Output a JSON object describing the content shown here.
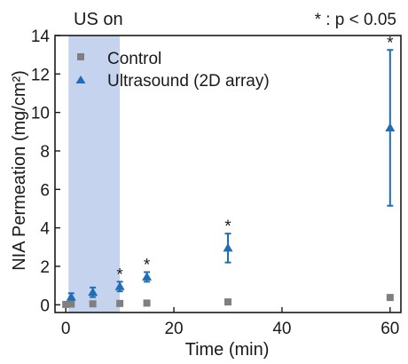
{
  "chart_data": {
    "type": "scatter",
    "annotation_top_left": "US on",
    "significance_note": "* : p < 0.05",
    "xlabel": "Time (min)",
    "ylabel": "NIA Permeation (mg/cm²)",
    "xlim": [
      -2,
      62
    ],
    "ylim": [
      -0.4,
      14
    ],
    "x_ticks": [
      0,
      20,
      40,
      60
    ],
    "y_ticks": [
      0,
      2,
      4,
      6,
      8,
      10,
      12,
      14
    ],
    "legend_position": "top-left",
    "shaded_region": {
      "x_start": 0.5,
      "x_end": 10,
      "color": "#c6d3ee"
    },
    "series": [
      {
        "name": "Control",
        "marker": "square",
        "color": "#7f7f7f",
        "x": [
          0,
          1,
          5,
          10,
          15,
          30,
          60
        ],
        "y": [
          0.02,
          0.04,
          0.05,
          0.07,
          0.09,
          0.15,
          0.38
        ]
      },
      {
        "name": "Ultrasound (2D array)",
        "marker": "triangle",
        "color": "#1f6db5",
        "x": [
          1,
          5,
          10,
          15,
          30,
          60
        ],
        "y": [
          0.4,
          0.65,
          0.95,
          1.45,
          2.95,
          9.2
        ],
        "error": [
          0.2,
          0.25,
          0.25,
          0.25,
          0.75,
          4.05
        ],
        "significant": [
          false,
          false,
          true,
          true,
          true,
          true
        ]
      }
    ]
  }
}
